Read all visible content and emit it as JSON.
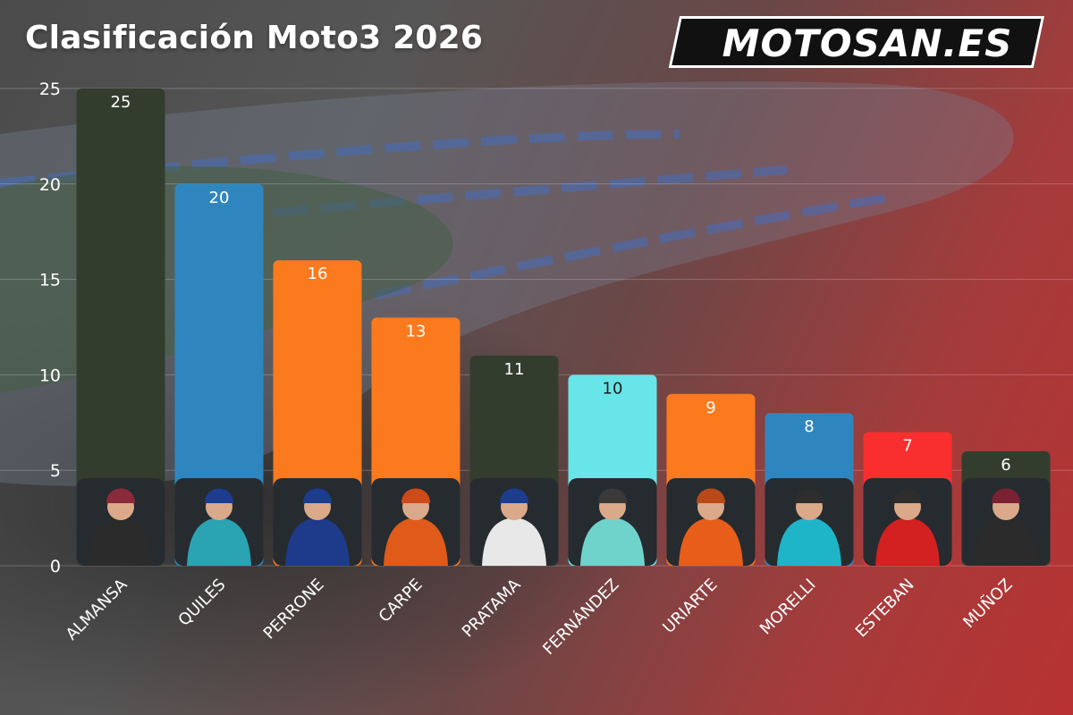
{
  "header": {
    "title": "Clasificación Moto3 2026",
    "logo_text": "MOTOSAN.ES"
  },
  "chart_data": {
    "type": "bar",
    "title": "Clasificación Moto3 2026",
    "xlabel": "",
    "ylabel": "",
    "ylim": [
      0,
      25
    ],
    "yticks": [
      0,
      5,
      10,
      15,
      20,
      25
    ],
    "grid": true,
    "categories": [
      "ALMANSA",
      "QUILES",
      "PERRONE",
      "CARPE",
      "PRATAMA",
      "FERNÁNDEZ",
      "URIARTE",
      "MORELLI",
      "ESTEBAN",
      "MUÑOZ"
    ],
    "values": [
      25,
      20,
      16,
      13,
      11,
      10,
      9,
      8,
      7,
      6
    ],
    "bar_colors": [
      "#333d2e",
      "#2f86bf",
      "#fb7a1e",
      "#fb7a1e",
      "#333d2e",
      "#68e5e8",
      "#fb7a1e",
      "#2f86bf",
      "#f92f2f",
      "#333d2e"
    ],
    "label_colors": [
      "#ffffff",
      "#ffffff",
      "#ffffff",
      "#ffffff",
      "#ffffff",
      "#1a1a1a",
      "#ffffff",
      "#ffffff",
      "#ffffff",
      "#ffffff"
    ],
    "rider_suit_colors": [
      "#2b2b2b",
      "#2aa3b3",
      "#1e3a8a",
      "#e05a1a",
      "#e8e8e8",
      "#6fd3cc",
      "#e85d1a",
      "#1fb5c8",
      "#d32020",
      "#2b2b2b"
    ],
    "rider_helmet_colors": [
      "#8b2a3a",
      "#1b3c8f",
      "#1b3c8f",
      "#cc4b18",
      "#1b3c8f",
      "#3a3a3a",
      "#b84a1a",
      "#2d2d2d",
      "#2d2d2d",
      "#7a2232"
    ]
  }
}
